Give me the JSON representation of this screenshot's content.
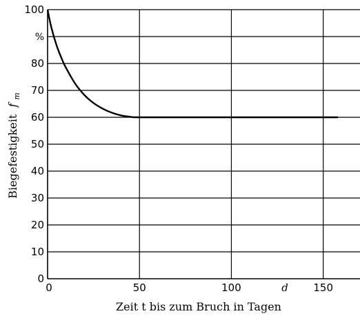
{
  "chart_data": {
    "type": "line",
    "xlabel": "Zeit t bis zum Bruch in Tagen",
    "xlabel_unit": "d",
    "ylabel": "Biegefestigkeit",
    "ylabel_symbol": "f",
    "ylabel_symbol_sub": "m",
    "ylabel_unit": "%",
    "xlim": [
      0,
      170
    ],
    "ylim": [
      0,
      100
    ],
    "x_ticks": [
      0,
      50,
      100,
      150
    ],
    "y_ticks": [
      0,
      10,
      20,
      30,
      40,
      50,
      60,
      70,
      80,
      90,
      100
    ],
    "y_tick_labels": [
      "0",
      "10",
      "20",
      "30",
      "40",
      "50",
      "60",
      "70",
      "80",
      "%",
      "100"
    ],
    "grid": true,
    "series": [
      {
        "x": [
          0,
          2,
          5,
          8,
          10,
          15,
          20,
          25,
          30,
          35,
          40,
          45,
          50,
          80,
          110,
          140,
          158
        ],
        "y": [
          100,
          93.5,
          86.5,
          81.3,
          78.4,
          72.5,
          68.3,
          65.3,
          63.2,
          61.7,
          60.7,
          60.2,
          60,
          60,
          60,
          60,
          60
        ]
      }
    ]
  }
}
